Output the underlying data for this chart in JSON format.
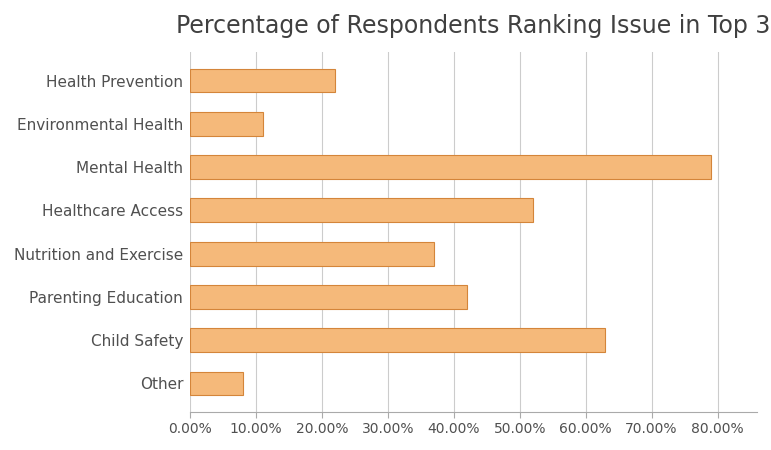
{
  "title": "Percentage of Respondents Ranking Issue in Top 3",
  "categories": [
    "Health Prevention",
    "Environmental Health",
    "Mental Health",
    "Healthcare Access",
    "Nutrition and Exercise",
    "Parenting Education",
    "Child Safety",
    "Other"
  ],
  "values": [
    0.22,
    0.11,
    0.79,
    0.52,
    0.37,
    0.42,
    0.63,
    0.08
  ],
  "bar_color": "#F5B97A",
  "bar_edge_color": "#D4853A",
  "background_color": "#FFFFFF",
  "title_fontsize": 17,
  "label_fontsize": 11,
  "tick_fontsize": 10,
  "xlim": [
    0,
    0.86
  ],
  "xticks": [
    0.0,
    0.1,
    0.2,
    0.3,
    0.4,
    0.5,
    0.6,
    0.7,
    0.8
  ],
  "xtick_labels": [
    "0.00%",
    "10.00%",
    "20.00%",
    "30.00%",
    "40.00%",
    "50.00%",
    "60.00%",
    "70.00%",
    "80.00%"
  ],
  "grid_color": "#CCCCCC",
  "border_color": "#AAAAAA"
}
